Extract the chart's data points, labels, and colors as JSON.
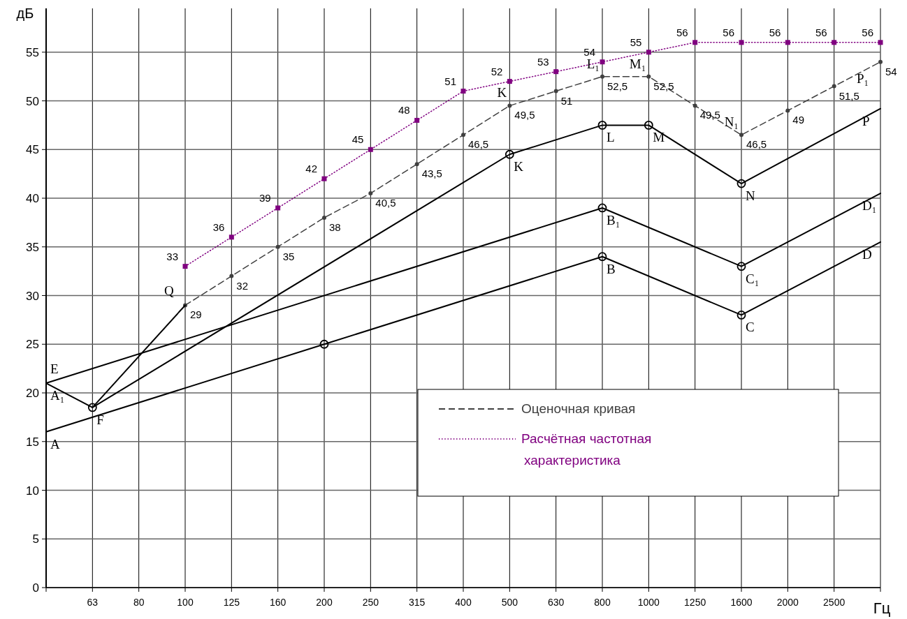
{
  "chart_data": {
    "type": "line",
    "ylabel": "дБ",
    "xlabel": "Гц",
    "categories": [
      null,
      "63",
      "80",
      "100",
      "125",
      "160",
      "200",
      "250",
      "315",
      "400",
      "500",
      "630",
      "800",
      "1000",
      "1250",
      "1600",
      "2000",
      "2500",
      null
    ],
    "ylim": [
      0,
      59.5
    ],
    "yticks": [
      0,
      5,
      10,
      15,
      20,
      25,
      30,
      35,
      40,
      45,
      50,
      55
    ],
    "grid": true,
    "legend": "bottom right",
    "series": [
      {
        "name": "Оценочная кривая",
        "color": "#404040",
        "line_style": "dashed",
        "marker": "circle",
        "values": [
          null,
          null,
          null,
          29,
          32,
          35,
          38,
          40.5,
          43.5,
          46.5,
          49.5,
          51,
          52.5,
          52.5,
          49.5,
          46.5,
          49,
          51.5,
          54
        ],
        "value_labels": [
          null,
          null,
          null,
          "29",
          "32",
          "35",
          "38",
          "40,5",
          "43,5",
          "46,5",
          "49,5",
          "51",
          "52,5",
          "52,5",
          "49,5",
          "46,5",
          "49",
          "51,5",
          "54"
        ]
      },
      {
        "name": "Расчётная частотная характеристика",
        "color": "#800080",
        "line_style": "dotted",
        "marker": "square",
        "values": [
          null,
          null,
          null,
          33,
          36,
          39,
          42,
          45,
          48,
          51,
          52,
          53,
          54,
          55,
          56,
          56,
          56,
          56,
          56
        ],
        "value_labels": [
          null,
          null,
          null,
          "33",
          "36",
          "39",
          "42",
          "45",
          "48",
          "51",
          "52",
          "53",
          "54",
          "55",
          "56",
          "56",
          "56",
          "56",
          "56"
        ]
      },
      {
        "color": "#000000",
        "line_style": "solid",
        "marker": "circle",
        "values": [
          16,
          null,
          null,
          null,
          null,
          null,
          25,
          null,
          null,
          null,
          null,
          null,
          34,
          null,
          null,
          28,
          null,
          null,
          35.5
        ],
        "value_labels": [
          "A",
          null,
          null,
          null,
          null,
          null,
          null,
          null,
          null,
          null,
          null,
          null,
          "B",
          null,
          null,
          "C",
          null,
          null,
          "D"
        ]
      },
      {
        "color": "#000000",
        "line_style": "solid",
        "marker": "circle",
        "values": [
          21,
          null,
          null,
          null,
          null,
          null,
          null,
          null,
          null,
          null,
          null,
          null,
          39,
          null,
          null,
          33,
          null,
          null,
          40.5
        ],
        "value_labels": [
          "E",
          null,
          null,
          null,
          null,
          null,
          null,
          null,
          null,
          null,
          null,
          null,
          "B₁",
          null,
          null,
          "C₁",
          null,
          null,
          "D₁"
        ]
      },
      {
        "color": "#000000",
        "line_style": "solid",
        "marker": "circle",
        "values": [
          null,
          18.5,
          null,
          null,
          null,
          null,
          null,
          null,
          null,
          null,
          44.5,
          null,
          47.5,
          47.5,
          null,
          41.5,
          null,
          null,
          49.2
        ],
        "value_labels": [
          null,
          "F",
          null,
          null,
          null,
          null,
          null,
          null,
          null,
          null,
          "K",
          null,
          "L",
          "M",
          null,
          "N",
          null,
          null,
          "P"
        ]
      },
      {
        "color": "#000000",
        "line_style": "solid",
        "values": [
          21,
          18.5,
          null,
          29,
          null,
          null,
          null,
          null,
          null,
          null,
          null,
          null,
          null,
          null,
          null,
          null,
          null,
          null,
          null
        ],
        "value_labels": [
          "A₁",
          null,
          null,
          "Q",
          null,
          null,
          null,
          null,
          null,
          null,
          null,
          null,
          null,
          null,
          null,
          null,
          null,
          null,
          null
        ]
      }
    ],
    "annotations": [
      {
        "text": "K",
        "x": "500",
        "y": 49.5
      },
      {
        "text": "L₁",
        "x": "800",
        "y": 52.5
      },
      {
        "text": "M₁",
        "x": "1000",
        "y": 52.5
      },
      {
        "text": "N₁",
        "x": "1600",
        "y": 46.5
      },
      "P₁"
    ]
  }
}
